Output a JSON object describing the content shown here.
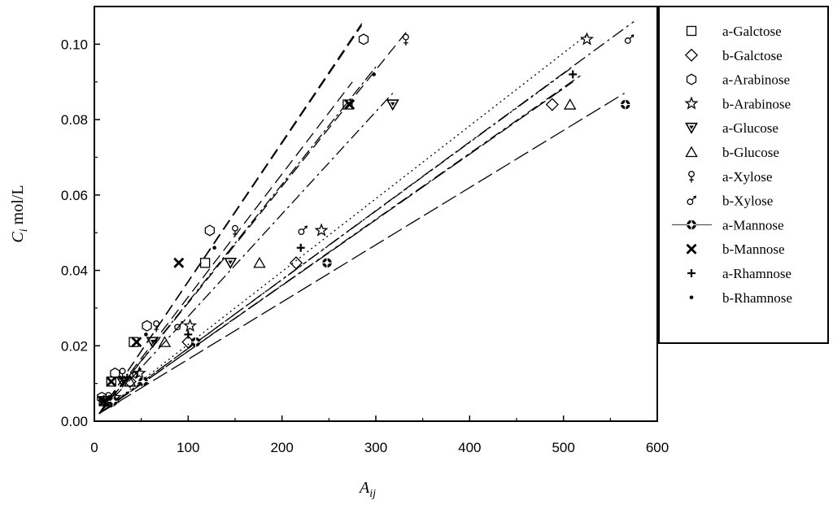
{
  "chart_data": {
    "type": "scatter",
    "title": "",
    "xlabel": {
      "main": "A",
      "sub": "ij"
    },
    "ylabel": {
      "main": "C",
      "sub": "i",
      "suffix": " mol/L"
    },
    "xlim": [
      0,
      600
    ],
    "ylim": [
      0,
      0.11
    ],
    "x_ticks": [
      "0",
      "100",
      "200",
      "300",
      "400",
      "500",
      "600"
    ],
    "y_ticks": [
      "0.00",
      "0.02",
      "0.04",
      "0.06",
      "0.08",
      "0.10"
    ],
    "grid": false,
    "legend_position": "right",
    "series": [
      {
        "name": "a-Galctose",
        "marker": "square",
        "points": [
          [
            10,
            0.0053
          ],
          [
            18,
            0.0105
          ],
          [
            42,
            0.021
          ],
          [
            118,
            0.042
          ],
          [
            270,
            0.084
          ]
        ],
        "fit": [
          [
            5,
            0.002
          ],
          [
            285,
            0.105
          ]
        ],
        "dash": "14,7"
      },
      {
        "name": "b-Galctose",
        "marker": "diamond",
        "points": [
          [
            18,
            0.0053
          ],
          [
            38,
            0.0105
          ],
          [
            100,
            0.021
          ],
          [
            215,
            0.042
          ],
          [
            488,
            0.084
          ]
        ],
        "fit": [
          [
            5,
            0.002
          ],
          [
            520,
            0.092
          ]
        ],
        "dash": "14,5,4,5"
      },
      {
        "name": "a-Arabinose",
        "marker": "hexagon",
        "points": [
          [
            8,
            0.0063
          ],
          [
            22,
            0.0127
          ],
          [
            56,
            0.0253
          ],
          [
            123,
            0.0506
          ],
          [
            287,
            0.1013
          ]
        ],
        "fit": [
          [
            5,
            0.002
          ],
          [
            285,
            0.1055
          ]
        ],
        "dash": "14,7"
      },
      {
        "name": "b-Arabinose",
        "marker": "star",
        "points": [
          [
            22,
            0.0063
          ],
          [
            48,
            0.0127
          ],
          [
            102,
            0.0253
          ],
          [
            242,
            0.0506
          ],
          [
            525,
            0.1013
          ]
        ],
        "fit": [
          [
            5,
            0.002
          ],
          [
            525,
            0.1025
          ]
        ],
        "dash": "2,4"
      },
      {
        "name": "a-Glucose",
        "marker": "triangle-down",
        "points": [
          [
            10,
            0.0053
          ],
          [
            30,
            0.0105
          ],
          [
            62,
            0.021
          ],
          [
            145,
            0.042
          ],
          [
            318,
            0.084
          ]
        ],
        "fit": [
          [
            5,
            0.002
          ],
          [
            318,
            0.087
          ]
        ],
        "dash": "14,5,3,5"
      },
      {
        "name": "b-Glucose",
        "marker": "triangle-up",
        "points": [
          [
            15,
            0.0053
          ],
          [
            38,
            0.0105
          ],
          [
            75,
            0.021
          ],
          [
            176,
            0.042
          ],
          [
            507,
            0.084
          ]
        ],
        "fit": [
          [
            5,
            0.002
          ],
          [
            510,
            0.09
          ]
        ],
        "dash": "20,5"
      },
      {
        "name": "a-Xylose",
        "marker": "female",
        "points": [
          [
            15,
            0.0063
          ],
          [
            30,
            0.0127
          ],
          [
            66,
            0.0253
          ],
          [
            150,
            0.0506
          ],
          [
            332,
            0.1013
          ]
        ],
        "fit": [
          [
            5,
            0.002
          ],
          [
            335,
            0.104
          ]
        ],
        "dash": "14,7"
      },
      {
        "name": "b-Xylose",
        "marker": "male",
        "points": [
          [
            18,
            0.0063
          ],
          [
            45,
            0.0127
          ],
          [
            90,
            0.0253
          ],
          [
            222,
            0.0506
          ],
          [
            570,
            0.1013
          ]
        ],
        "fit": [
          [
            5,
            0.002
          ],
          [
            575,
            0.106
          ]
        ],
        "dash": "16,5,3,5"
      },
      {
        "name": "a-Mannose",
        "marker": "gear",
        "points": [
          [
            20,
            0.0053
          ],
          [
            52,
            0.0105
          ],
          [
            108,
            0.021
          ],
          [
            248,
            0.042
          ],
          [
            566,
            0.084
          ]
        ],
        "fit": [
          [
            5,
            0.002
          ],
          [
            565,
            0.087
          ]
        ],
        "dash": "20,6"
      },
      {
        "name": "b-Mannose",
        "marker": "cross",
        "points": [
          [
            10,
            0.0053
          ],
          [
            18,
            0.0105
          ],
          [
            45,
            0.021
          ],
          [
            90,
            0.042
          ],
          [
            272,
            0.084
          ]
        ],
        "fit": [
          [
            5,
            0.002
          ],
          [
            275,
            0.09
          ]
        ],
        "dash": "14,7"
      },
      {
        "name": "a-Rhamnose",
        "marker": "plus",
        "points": [
          [
            10,
            0.0058
          ],
          [
            35,
            0.0115
          ],
          [
            100,
            0.023
          ],
          [
            220,
            0.046
          ],
          [
            510,
            0.092
          ]
        ],
        "fit": [
          [
            5,
            0.002
          ],
          [
            510,
            0.094
          ]
        ],
        "dash": "14,4,3,4,3,4"
      },
      {
        "name": "b-Rhamnose",
        "marker": "dot",
        "points": [
          [
            8,
            0.0058
          ],
          [
            28,
            0.0115
          ],
          [
            55,
            0.023
          ],
          [
            128,
            0.046
          ],
          [
            298,
            0.092
          ]
        ],
        "fit": [
          [
            5,
            0.002
          ],
          [
            300,
            0.094
          ]
        ],
        "dash": "14,4,3,4"
      }
    ]
  }
}
